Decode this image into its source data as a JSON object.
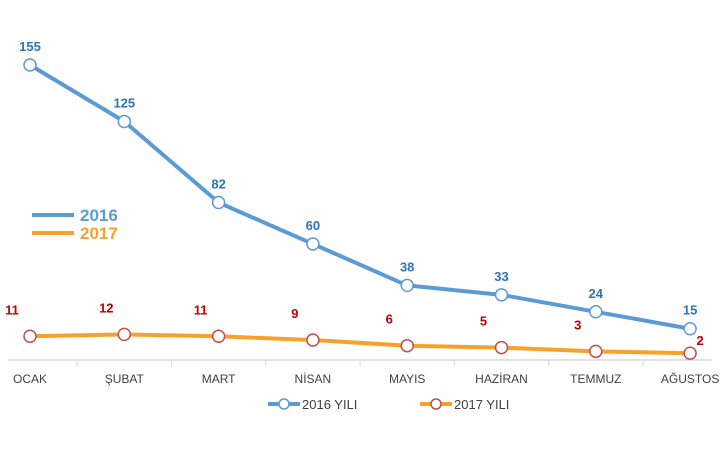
{
  "chart_data": {
    "type": "line",
    "title": "",
    "xlabel": "",
    "ylabel": "",
    "categories": [
      "OCAK",
      "ŞUBAT",
      "MART",
      "NİSAN",
      "MAYIS",
      "HAZİRAN",
      "TEMMUZ",
      "AĞUSTOS"
    ],
    "series": [
      {
        "name": "2016 YILI",
        "short_name": "2016",
        "values": [
          155,
          125,
          82,
          60,
          38,
          33,
          24,
          15
        ],
        "color": "#5b9bd5",
        "label_color": "#2e75b6"
      },
      {
        "name": "2017 YILI",
        "short_name": "2017",
        "values": [
          11,
          12,
          11,
          9,
          6,
          5,
          3,
          2
        ],
        "color": "#f7a12a",
        "label_color": "#c00000",
        "marker_edge": "#c0504d"
      }
    ],
    "ylim": [
      0,
      157
    ],
    "grid": false,
    "legend_placement": [
      "left",
      "bottom"
    ]
  }
}
